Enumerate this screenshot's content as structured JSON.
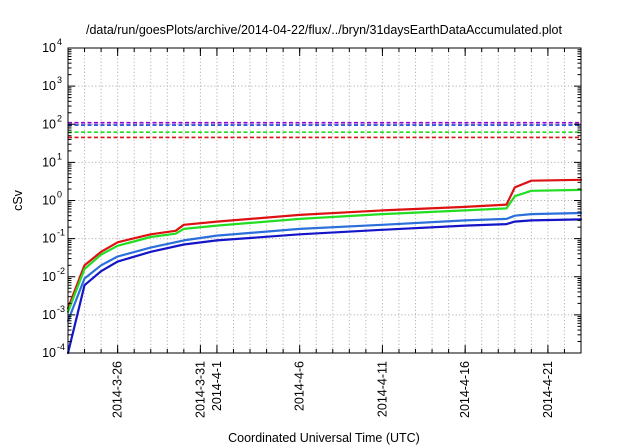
{
  "chart_data": {
    "type": "line",
    "title": "/data/run/goesPlots/archive/2014-04-22/flux/../bryn/31daysEarthDataAccumulated.plot",
    "xlabel": "Coordinated Universal Time (UTC)",
    "ylabel": "cSv",
    "yscale": "log",
    "ylim": [
      0.0001,
      10000
    ],
    "xlim": [
      "2014-03-23",
      "2014-04-23"
    ],
    "y_ticks": [
      {
        "base": "10",
        "exp": "-4",
        "value": 0.0001
      },
      {
        "base": "10",
        "exp": "-3",
        "value": 0.001
      },
      {
        "base": "10",
        "exp": "-2",
        "value": 0.01
      },
      {
        "base": "10",
        "exp": "-1",
        "value": 0.1
      },
      {
        "base": "10",
        "exp": "0",
        "value": 1
      },
      {
        "base": "10",
        "exp": "1",
        "value": 10
      },
      {
        "base": "10",
        "exp": "2",
        "value": 100
      },
      {
        "base": "10",
        "exp": "3",
        "value": 1000
      },
      {
        "base": "10",
        "exp": "4",
        "value": 10000
      }
    ],
    "x_ticks": [
      "2014-3-26",
      "2014-3-31",
      "2014-4-1",
      "2014-4-6",
      "2014-4-11",
      "2014-4-16",
      "2014-4-21"
    ],
    "x_tick_dates": [
      "2014-03-26",
      "2014-03-31",
      "2014-04-01",
      "2014-04-06",
      "2014-04-11",
      "2014-04-16",
      "2014-04-21"
    ],
    "grid": true,
    "legend": "none",
    "reference_lines": [
      {
        "y": 110,
        "color": "#9400d3",
        "style": "dashed"
      },
      {
        "y": 95,
        "color": "#1f3fd6",
        "style": "dashed"
      },
      {
        "y": 62,
        "color": "#22dd22",
        "style": "dashed"
      },
      {
        "y": 45,
        "color": "#dd1111",
        "style": "dashed"
      }
    ],
    "series": [
      {
        "color": "#dd1111",
        "x": [
          "2014-03-23",
          "2014-03-24",
          "2014-03-25",
          "2014-03-26",
          "2014-03-28",
          "2014-03-29T12:00",
          "2014-03-30",
          "2014-04-01",
          "2014-04-06",
          "2014-04-11",
          "2014-04-16",
          "2014-04-18T12:00",
          "2014-04-19",
          "2014-04-20",
          "2014-04-23"
        ],
        "values": [
          0.0015,
          0.02,
          0.045,
          0.08,
          0.13,
          0.16,
          0.23,
          0.28,
          0.42,
          0.55,
          0.68,
          0.78,
          2.2,
          3.3,
          3.5
        ]
      },
      {
        "color": "#22dd22",
        "x": [
          "2014-03-23",
          "2014-03-24",
          "2014-03-25",
          "2014-03-26",
          "2014-03-28",
          "2014-03-29T12:00",
          "2014-03-30",
          "2014-04-01",
          "2014-04-06",
          "2014-04-11",
          "2014-04-16",
          "2014-04-18T12:00",
          "2014-04-19",
          "2014-04-20",
          "2014-04-23"
        ],
        "values": [
          0.0012,
          0.016,
          0.038,
          0.065,
          0.11,
          0.135,
          0.18,
          0.22,
          0.33,
          0.44,
          0.55,
          0.62,
          1.3,
          1.8,
          1.9
        ]
      },
      {
        "color": "#2a6fdb",
        "x": [
          "2014-03-23",
          "2014-03-24",
          "2014-03-25",
          "2014-03-26",
          "2014-03-28",
          "2014-03-30",
          "2014-04-01",
          "2014-04-06",
          "2014-04-11",
          "2014-04-16",
          "2014-04-18T12:00",
          "2014-04-19",
          "2014-04-20",
          "2014-04-23"
        ],
        "values": [
          0.0007,
          0.009,
          0.02,
          0.034,
          0.058,
          0.09,
          0.12,
          0.18,
          0.23,
          0.3,
          0.33,
          0.4,
          0.44,
          0.47
        ]
      },
      {
        "color": "#1414c8",
        "x": [
          "2014-03-23",
          "2014-03-24",
          "2014-03-25",
          "2014-03-26",
          "2014-03-28",
          "2014-03-30",
          "2014-04-01",
          "2014-04-06",
          "2014-04-11",
          "2014-04-16",
          "2014-04-18T12:00",
          "2014-04-19",
          "2014-04-20",
          "2014-04-23"
        ],
        "values": [
          0.0001,
          0.006,
          0.014,
          0.025,
          0.045,
          0.07,
          0.09,
          0.13,
          0.17,
          0.22,
          0.24,
          0.28,
          0.3,
          0.32
        ]
      }
    ]
  }
}
